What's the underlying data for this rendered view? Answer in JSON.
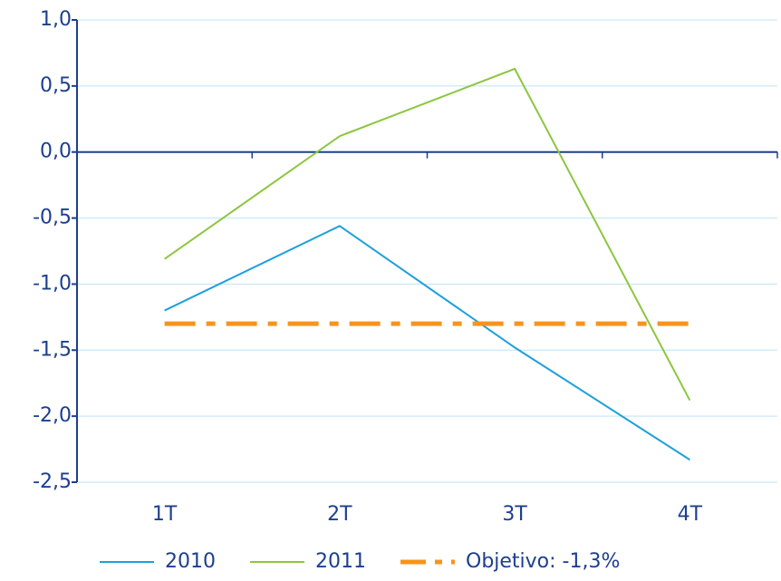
{
  "chart_data": {
    "type": "line",
    "categories": [
      "1T",
      "2T",
      "3T",
      "4T"
    ],
    "series": [
      {
        "name": "2010",
        "color": "#1ea0dc",
        "values": [
          -1.2,
          -0.56,
          -1.48,
          -2.33
        ]
      },
      {
        "name": "2011",
        "color": "#8cc63f",
        "values": [
          -0.81,
          0.12,
          0.63,
          -1.88
        ]
      },
      {
        "name": "Objetivo: -1,3%",
        "color": "#f7941d",
        "linestyle": "dash-dot",
        "values": [
          -1.3,
          -1.3,
          -1.3,
          -1.3
        ]
      }
    ],
    "ylim": [
      -2.5,
      1.0
    ],
    "yticks": [
      {
        "value": -2.5,
        "label": "-2,5"
      },
      {
        "value": -2.0,
        "label": "-2,0"
      },
      {
        "value": -1.5,
        "label": "-1,5"
      },
      {
        "value": -1.0,
        "label": "-1,0"
      },
      {
        "value": -0.5,
        "label": "-0,5"
      },
      {
        "value": 0,
        "label": "0,0"
      },
      {
        "value": 0.5,
        "label": "0,5"
      },
      {
        "value": 1.0,
        "label": "1,0"
      }
    ],
    "grid": true
  }
}
